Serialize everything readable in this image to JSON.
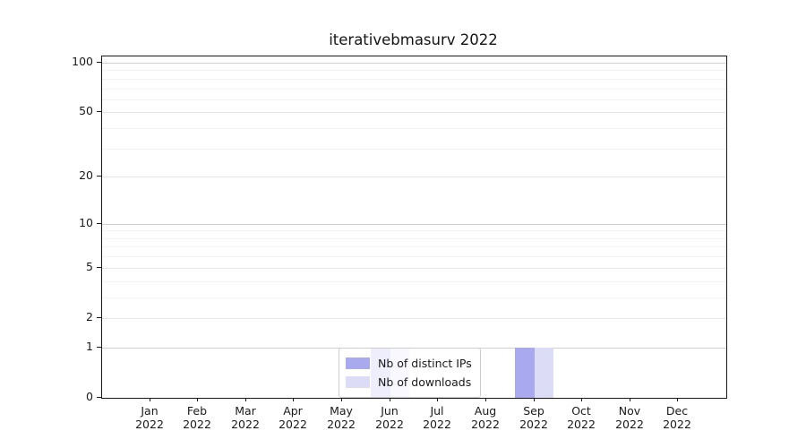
{
  "chart_data": {
    "type": "bar",
    "title": "iterativebmasurv 2022",
    "x_tick_labels": [
      {
        "month": "Jan",
        "year": "2022"
      },
      {
        "month": "Feb",
        "year": "2022"
      },
      {
        "month": "Mar",
        "year": "2022"
      },
      {
        "month": "Apr",
        "year": "2022"
      },
      {
        "month": "May",
        "year": "2022"
      },
      {
        "month": "Jun",
        "year": "2022"
      },
      {
        "month": "Jul",
        "year": "2022"
      },
      {
        "month": "Aug",
        "year": "2022"
      },
      {
        "month": "Sep",
        "year": "2022"
      },
      {
        "month": "Oct",
        "year": "2022"
      },
      {
        "month": "Nov",
        "year": "2022"
      },
      {
        "month": "Dec",
        "year": "2022"
      }
    ],
    "series": [
      {
        "name": "Nb of distinct IPs",
        "color": "#a9a9ef",
        "values": [
          0,
          0,
          0,
          0,
          0,
          1,
          0,
          0,
          1,
          0,
          0,
          0
        ]
      },
      {
        "name": "Nb of downloads",
        "color": "#dcdcf7",
        "values": [
          0,
          0,
          0,
          0,
          0,
          1,
          0,
          0,
          1,
          0,
          0,
          0
        ]
      }
    ],
    "y_axis": {
      "scale": "log1p",
      "min": 0,
      "max": 100,
      "tick_values": [
        0,
        1,
        2,
        5,
        10,
        20,
        50,
        100
      ],
      "tick_labels": [
        "0",
        "1",
        "2",
        "5",
        "10",
        "20",
        "50",
        "100"
      ],
      "decade_values": [
        1,
        10,
        100
      ],
      "minor_gridline_values": [
        3,
        4,
        6,
        7,
        8,
        9,
        30,
        40,
        60,
        70,
        80,
        90
      ]
    },
    "legend": {
      "position": "lower center",
      "entries": [
        "Nb of distinct IPs",
        "Nb of downloads"
      ]
    },
    "grid": true
  }
}
